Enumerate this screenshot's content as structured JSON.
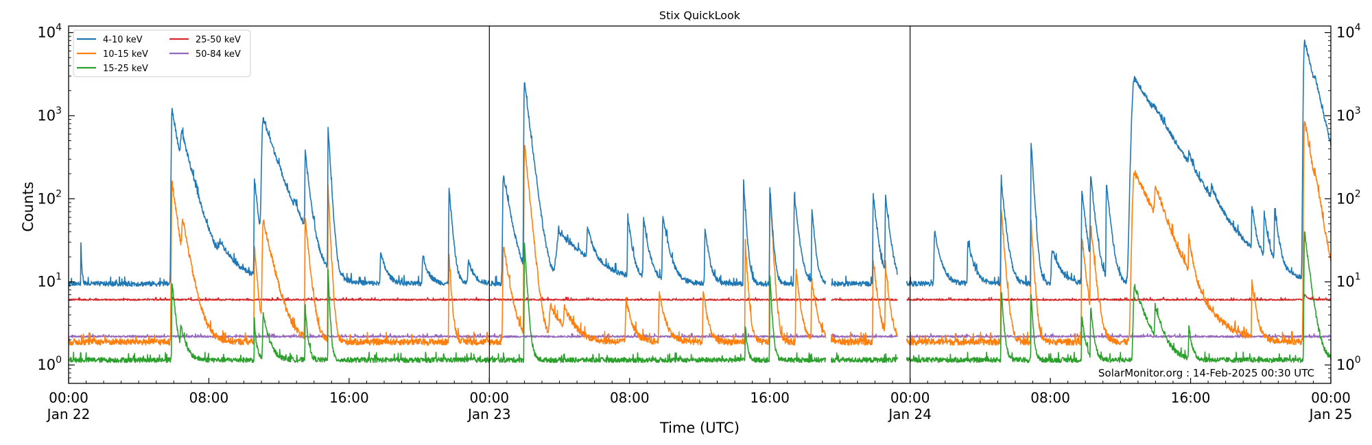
{
  "chart_data": {
    "type": "line",
    "title": "Stix QuickLook",
    "xlabel": "Time (UTC)",
    "ylabel": "Counts",
    "yscale": "log",
    "ylim": [
      0.6,
      12000
    ],
    "xlim_hours": [
      0,
      72
    ],
    "x_ticks": [
      {
        "hour": 0,
        "line1": "00:00",
        "line2": "Jan 22"
      },
      {
        "hour": 8,
        "line1": "08:00",
        "line2": ""
      },
      {
        "hour": 16,
        "line1": "16:00",
        "line2": ""
      },
      {
        "hour": 24,
        "line1": "00:00",
        "line2": "Jan 23"
      },
      {
        "hour": 32,
        "line1": "08:00",
        "line2": ""
      },
      {
        "hour": 40,
        "line1": "16:00",
        "line2": ""
      },
      {
        "hour": 48,
        "line1": "00:00",
        "line2": "Jan 24"
      },
      {
        "hour": 56,
        "line1": "08:00",
        "line2": ""
      },
      {
        "hour": 64,
        "line1": "16:00",
        "line2": ""
      },
      {
        "hour": 72,
        "line1": "00:00",
        "line2": "Jan 25"
      }
    ],
    "y_ticks": [
      {
        "value": 1,
        "base": "10",
        "exp": "0"
      },
      {
        "value": 10,
        "base": "10",
        "exp": "1"
      },
      {
        "value": 100,
        "base": "10",
        "exp": "2"
      },
      {
        "value": 1000,
        "base": "10",
        "exp": "3"
      },
      {
        "value": 10000,
        "base": "10",
        "exp": "4"
      }
    ],
    "day_boundaries_hours": [
      24,
      48
    ],
    "gaps_hours": [
      [
        43.2,
        43.5
      ],
      [
        47.3,
        47.8
      ]
    ],
    "legend": {
      "placement": "upper-left",
      "columns": 2
    },
    "annotation": "SolarMonitor.org : 14-Feb-2025 00:30 UTC",
    "series": [
      {
        "name": "4-10 keV",
        "color": "#1f77b4",
        "baseline": 9.5,
        "noise": 0.07,
        "peaks": [
          [
            0.7,
            28,
            0.05
          ],
          [
            5.9,
            1200,
            0.35
          ],
          [
            6.45,
            420,
            0.6
          ],
          [
            8.7,
            20,
            1.2
          ],
          [
            10.6,
            170,
            0.2
          ],
          [
            11.1,
            900,
            0.7
          ],
          [
            12.9,
            28,
            0.5
          ],
          [
            13.5,
            330,
            0.2
          ],
          [
            14.8,
            720,
            0.12
          ],
          [
            17.8,
            22,
            0.3
          ],
          [
            20.2,
            20,
            0.3
          ],
          [
            21.7,
            140,
            0.15
          ],
          [
            22.8,
            18,
            0.3
          ],
          [
            24.8,
            190,
            0.35
          ],
          [
            26.0,
            2600,
            0.25
          ],
          [
            28.0,
            38,
            1.6
          ],
          [
            29.6,
            35,
            0.3
          ],
          [
            31.9,
            60,
            0.2
          ],
          [
            32.8,
            55,
            0.25
          ],
          [
            33.9,
            60,
            0.3
          ],
          [
            36.3,
            45,
            0.2
          ],
          [
            38.5,
            160,
            0.12
          ],
          [
            40.0,
            130,
            0.12
          ],
          [
            41.4,
            110,
            0.2
          ],
          [
            42.4,
            75,
            0.15
          ],
          [
            45.9,
            110,
            0.2
          ],
          [
            46.6,
            110,
            0.2
          ],
          [
            49.4,
            40,
            0.3
          ],
          [
            51.3,
            30,
            0.3
          ],
          [
            53.2,
            160,
            0.2
          ],
          [
            54.9,
            500,
            0.12
          ],
          [
            56.1,
            25,
            0.4
          ],
          [
            57.8,
            130,
            0.2
          ],
          [
            58.3,
            180,
            0.2
          ],
          [
            59.2,
            150,
            0.2
          ],
          [
            60.8,
            2800,
            1.3
          ],
          [
            61.9,
            180,
            0.5
          ],
          [
            63.9,
            120,
            0.2
          ],
          [
            65.2,
            50,
            0.3
          ],
          [
            67.5,
            65,
            0.2
          ],
          [
            68.2,
            60,
            0.2
          ],
          [
            68.8,
            65,
            0.2
          ],
          [
            70.5,
            8000,
            0.5
          ],
          [
            71.1,
            600,
            0.3
          ],
          [
            71.7,
            45,
            0.25
          ]
        ]
      },
      {
        "name": "10-15 keV",
        "color": "#ff7f0e",
        "baseline": 1.9,
        "noise": 0.09,
        "peaks": [
          [
            5.9,
            165,
            0.28
          ],
          [
            6.5,
            40,
            0.4
          ],
          [
            10.6,
            27,
            0.15
          ],
          [
            11.1,
            55,
            0.45
          ],
          [
            13.5,
            55,
            0.2
          ],
          [
            14.8,
            135,
            0.1
          ],
          [
            21.7,
            20,
            0.12
          ],
          [
            24.8,
            28,
            0.3
          ],
          [
            26.0,
            470,
            0.2
          ],
          [
            27.5,
            5,
            0.7
          ],
          [
            28.3,
            4,
            0.5
          ],
          [
            31.8,
            6,
            0.3
          ],
          [
            33.7,
            7,
            0.3
          ],
          [
            36.2,
            8,
            0.2
          ],
          [
            38.6,
            30,
            0.12
          ],
          [
            40.0,
            120,
            0.12
          ],
          [
            41.5,
            14,
            0.2
          ],
          [
            42.4,
            10,
            0.25
          ],
          [
            45.9,
            18,
            0.2
          ],
          [
            46.6,
            14,
            0.2
          ],
          [
            53.2,
            75,
            0.15
          ],
          [
            54.9,
            55,
            0.12
          ],
          [
            57.8,
            35,
            0.2
          ],
          [
            58.3,
            45,
            0.2
          ],
          [
            60.8,
            210,
            1.0
          ],
          [
            62.0,
            85,
            0.5
          ],
          [
            63.9,
            25,
            0.2
          ],
          [
            67.5,
            10,
            0.2
          ],
          [
            70.5,
            900,
            0.35
          ],
          [
            71.1,
            60,
            0.3
          ]
        ]
      },
      {
        "name": "15-25 keV",
        "color": "#2ca02c",
        "baseline": 1.15,
        "noise": 0.07,
        "peaks": [
          [
            5.9,
            10,
            0.18
          ],
          [
            6.4,
            2.5,
            0.3
          ],
          [
            10.6,
            3,
            0.12
          ],
          [
            11.1,
            4,
            0.3
          ],
          [
            13.5,
            5,
            0.12
          ],
          [
            14.8,
            14,
            0.08
          ],
          [
            26.0,
            30,
            0.12
          ],
          [
            38.6,
            3,
            0.1
          ],
          [
            40.0,
            12,
            0.1
          ],
          [
            53.2,
            8,
            0.12
          ],
          [
            54.9,
            7,
            0.1
          ],
          [
            57.8,
            4,
            0.15
          ],
          [
            58.3,
            5,
            0.15
          ],
          [
            60.8,
            9,
            0.6
          ],
          [
            62.0,
            4,
            0.4
          ],
          [
            63.9,
            3,
            0.15
          ],
          [
            70.5,
            40,
            0.25
          ]
        ]
      },
      {
        "name": "25-50 keV",
        "color": "#d62728",
        "baseline": 6.1,
        "noise": 0.02,
        "peaks": [
          [
            70.5,
            7,
            0.2
          ]
        ]
      },
      {
        "name": "50-84 keV",
        "color": "#9467bd",
        "baseline": 2.2,
        "noise": 0.025,
        "peaks": []
      }
    ]
  }
}
